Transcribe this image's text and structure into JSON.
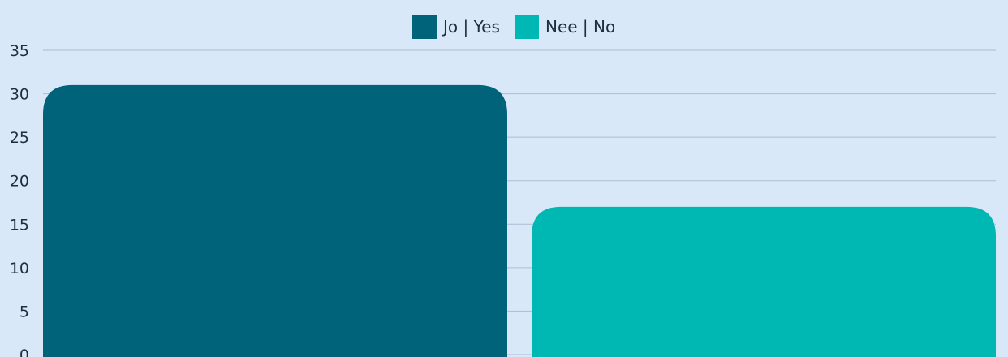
{
  "chart_data": {
    "type": "bar",
    "series": [
      {
        "name": "Jo | Yes",
        "value": 31,
        "color": "#00637a"
      },
      {
        "name": "Nee | No",
        "value": 17,
        "color": "#00b8b3"
      }
    ],
    "ylim": [
      0,
      35
    ],
    "yticks": [
      "0",
      "5",
      "10",
      "15",
      "20",
      "25",
      "30",
      "35"
    ],
    "grid": true,
    "legend_position": "top-center",
    "background": "#d8e8f8"
  }
}
